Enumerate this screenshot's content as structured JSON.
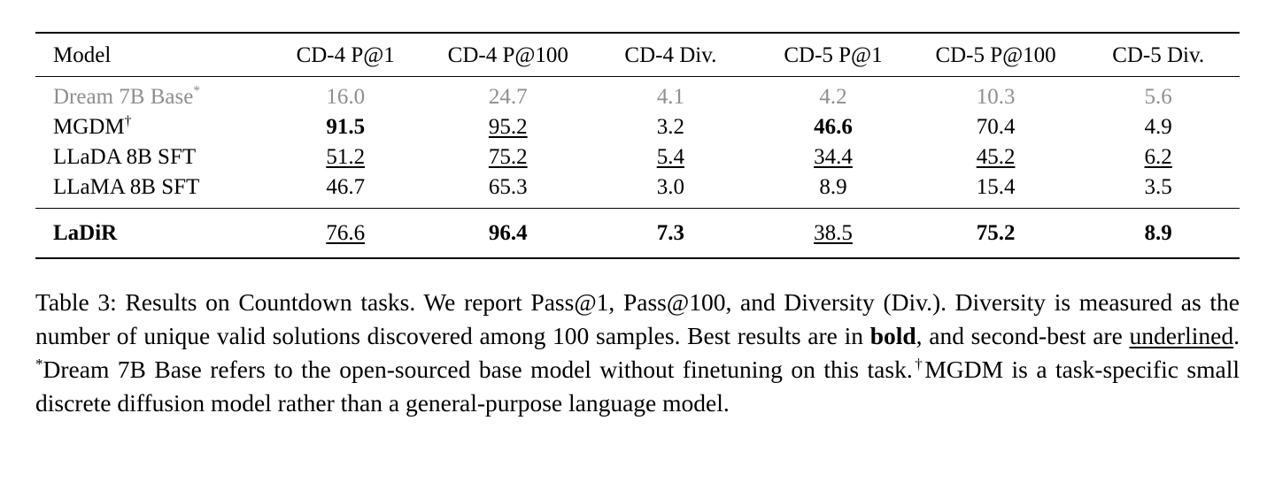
{
  "colors": {
    "muted_row": "#8f8f8f",
    "text": "#000000",
    "background": "#ffffff"
  },
  "table": {
    "columns": [
      {
        "label": "Model"
      },
      {
        "label": "CD-4 P@1"
      },
      {
        "label": "CD-4 P@100"
      },
      {
        "label": "CD-4 Div."
      },
      {
        "label": "CD-5 P@1"
      },
      {
        "label": "CD-5 P@100"
      },
      {
        "label": "CD-5 Div."
      }
    ],
    "groups": [
      {
        "rows": [
          {
            "model": {
              "text": "Dream 7B Base",
              "sup": "*"
            },
            "muted": true,
            "cells": [
              {
                "text": "16.0"
              },
              {
                "text": "24.7"
              },
              {
                "text": "4.1"
              },
              {
                "text": "4.2"
              },
              {
                "text": "10.3"
              },
              {
                "text": "5.6"
              }
            ]
          },
          {
            "model": {
              "text": "MGDM",
              "sup": "†"
            },
            "cells": [
              {
                "text": "91.5",
                "bold": true
              },
              {
                "text": "95.2",
                "underline": true
              },
              {
                "text": "3.2"
              },
              {
                "text": "46.6",
                "bold": true
              },
              {
                "text": "70.4"
              },
              {
                "text": "4.9"
              }
            ]
          },
          {
            "model": {
              "text": "LLaDA 8B SFT"
            },
            "cells": [
              {
                "text": "51.2",
                "underline": true
              },
              {
                "text": "75.2",
                "underline": true
              },
              {
                "text": "5.4",
                "underline": true
              },
              {
                "text": "34.4",
                "underline": true
              },
              {
                "text": "45.2",
                "underline": true
              },
              {
                "text": "6.2",
                "underline": true
              }
            ]
          },
          {
            "model": {
              "text": "LLaMA 8B SFT"
            },
            "cells": [
              {
                "text": "46.7"
              },
              {
                "text": "65.3"
              },
              {
                "text": "3.0"
              },
              {
                "text": "8.9"
              },
              {
                "text": "15.4"
              },
              {
                "text": "3.5"
              }
            ]
          }
        ]
      },
      {
        "rows": [
          {
            "model": {
              "text": "LaDiR",
              "bold": true
            },
            "cells": [
              {
                "text": "76.6",
                "underline": true
              },
              {
                "text": "96.4",
                "bold": true
              },
              {
                "text": "7.3",
                "bold": true
              },
              {
                "text": "38.5",
                "underline": true
              },
              {
                "text": "75.2",
                "bold": true
              },
              {
                "text": "8.9",
                "bold": true
              }
            ]
          }
        ]
      }
    ]
  },
  "caption": {
    "segments": [
      {
        "text": "Table 3: Results on Countdown tasks. We report Pass@1, Pass@100, and Diversity (Div.). Diversity is measured as the number of unique valid solutions discovered among 100 samples. Best results are in "
      },
      {
        "text": "bold",
        "bold": true
      },
      {
        "text": ", and second-best are "
      },
      {
        "text": "underlined",
        "underline": true
      },
      {
        "text": ". "
      },
      {
        "text": "*",
        "sup": true
      },
      {
        "text": "Dream 7B Base refers to the open-sourced base model without finetuning on this task."
      },
      {
        "text": "†",
        "sup": true
      },
      {
        "text": "MGDM is a task-specific small discrete diffusion model rather than a general-purpose language model."
      }
    ]
  }
}
